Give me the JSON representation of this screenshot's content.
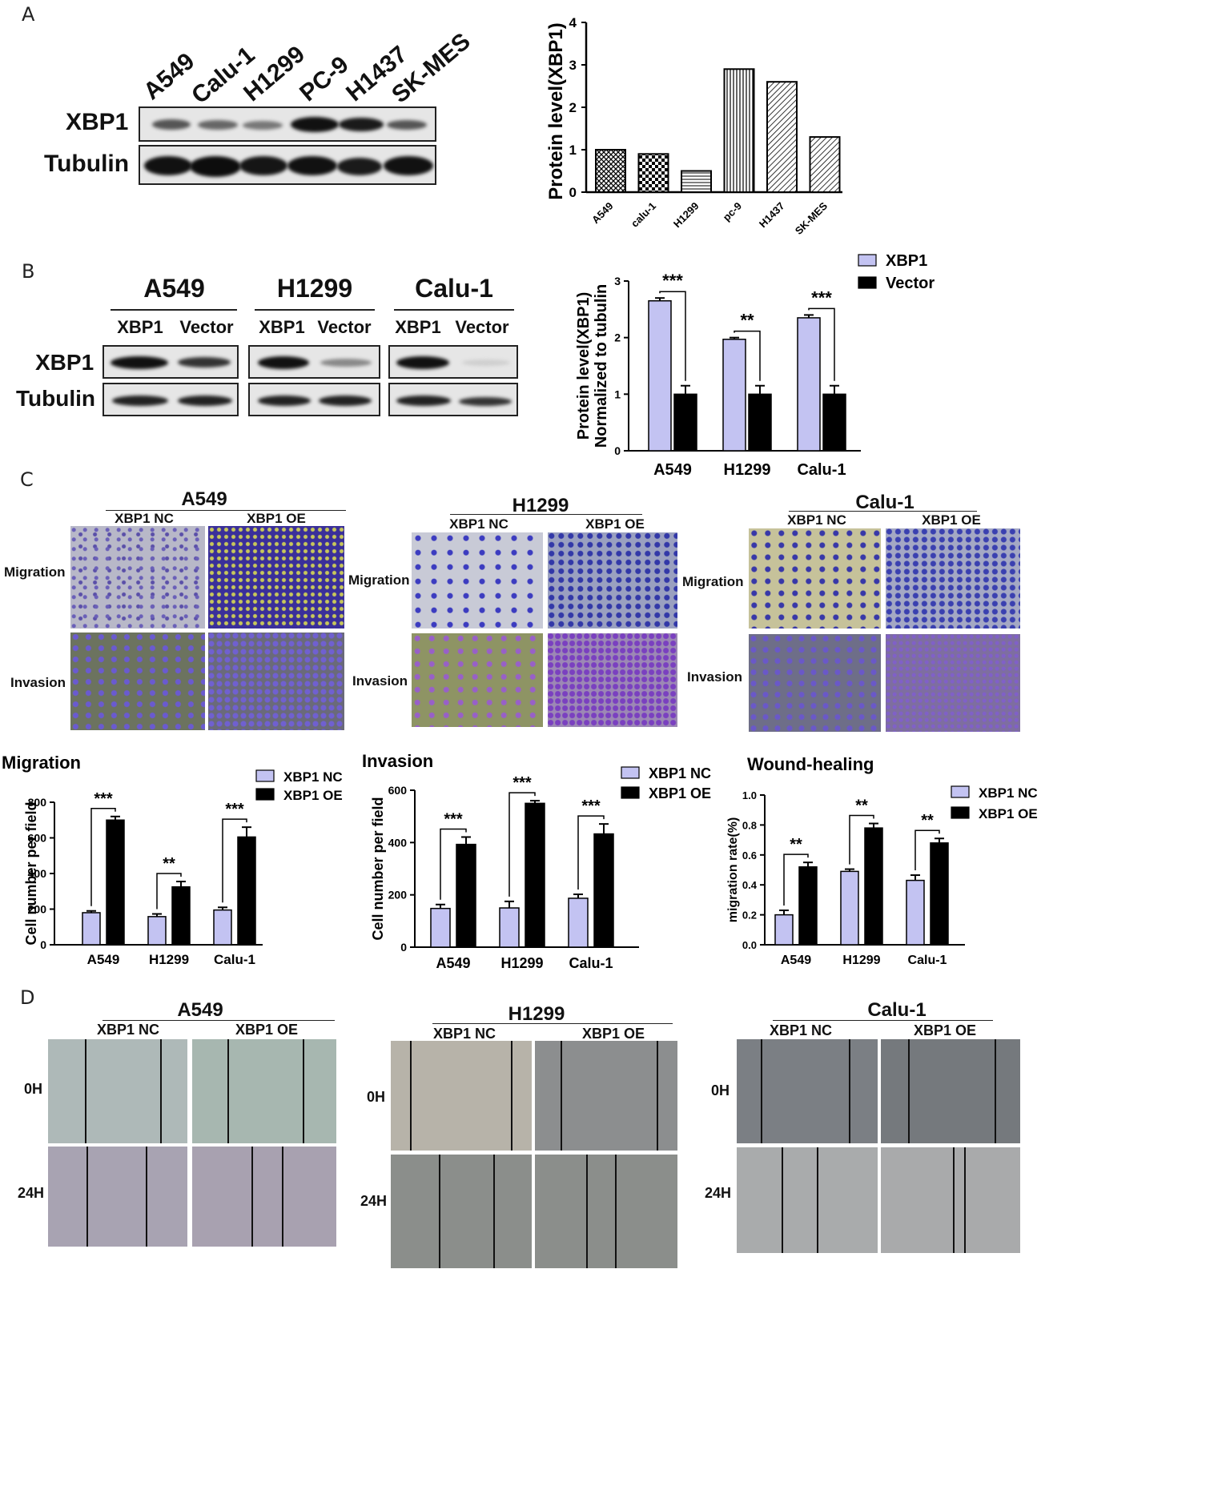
{
  "panelA": {
    "letter": "A",
    "cell_lines": [
      "A549",
      "Calu-1",
      "H1299",
      "PC-9",
      "H1437",
      "SK-MES"
    ],
    "rows": [
      "XBP1",
      "Tubulin"
    ]
  },
  "panelB": {
    "letter": "B",
    "groups": [
      "A549",
      "H1299",
      "Calu-1"
    ],
    "lanes": [
      "XBP1",
      "Vector"
    ],
    "rows": [
      "XBP1",
      "Tubulin"
    ]
  },
  "panelC": {
    "letter": "C",
    "groups": [
      "A549",
      "H1299",
      "Calu-1"
    ],
    "conditions": [
      "XBP1 NC",
      "XBP1 OE"
    ],
    "rows": [
      "Migration",
      "Invasion"
    ]
  },
  "panelD": {
    "letter": "D",
    "groups": [
      "A549",
      "H1299",
      "Calu-1"
    ],
    "conditions": [
      "XBP1 NC",
      "XBP1 OE"
    ],
    "rows": [
      "0H",
      "24H"
    ]
  },
  "colors": {
    "xbp1": "#c3c3f2",
    "vector": "#000000"
  },
  "chart_data": [
    {
      "id": "A",
      "type": "bar",
      "categories": [
        "A549",
        "calu-1",
        "H1299",
        "pc-9",
        "H1437",
        "SK-MES"
      ],
      "values": [
        1.0,
        0.9,
        0.5,
        2.9,
        2.6,
        1.3
      ],
      "patterns": [
        "crosshatch",
        "checker",
        "horizontal",
        "vertical",
        "diagonal",
        "diagonal"
      ],
      "ylabel": "Protein level(XBP1)",
      "ylim": [
        0,
        4
      ],
      "yticks": [
        "0",
        "1",
        "2",
        "3",
        "4"
      ]
    },
    {
      "id": "B",
      "type": "bar",
      "categories": [
        "A549",
        "H1299",
        "Calu-1"
      ],
      "series": [
        {
          "name": "XBP1",
          "values": [
            2.65,
            1.97,
            2.35
          ],
          "errors": [
            0.05,
            0.03,
            0.05
          ]
        },
        {
          "name": "Vector",
          "values": [
            1.0,
            1.0,
            1.0
          ],
          "errors": [
            0.15,
            0.15,
            0.15
          ]
        }
      ],
      "significance": [
        "***",
        "**",
        "***"
      ],
      "ylabel": "Protein level(XBP1)",
      "ylabel2": "Normalized to tubulin",
      "ylim": [
        0,
        3
      ],
      "yticks": [
        "0",
        "1",
        "2",
        "3"
      ]
    },
    {
      "id": "C-migration",
      "type": "bar",
      "title": "Migration",
      "categories": [
        "A549",
        "H1299",
        "Calu-1"
      ],
      "series": [
        {
          "name": "XBP1 NC",
          "values": [
            180,
            158,
            195
          ],
          "errors": [
            10,
            15,
            15
          ]
        },
        {
          "name": "XBP1 OE",
          "values": [
            700,
            325,
            605
          ],
          "errors": [
            20,
            30,
            55
          ]
        }
      ],
      "significance": [
        "***",
        "**",
        "***"
      ],
      "ylabel": "Cell number per field",
      "ylim": [
        0,
        800
      ],
      "yticks": [
        "0",
        "200",
        "400",
        "600",
        "800"
      ]
    },
    {
      "id": "C-invasion",
      "type": "bar",
      "title": "Invasion",
      "categories": [
        "A549",
        "H1299",
        "Calu-1"
      ],
      "series": [
        {
          "name": "XBP1 NC",
          "values": [
            148,
            150,
            187
          ],
          "errors": [
            15,
            25,
            15
          ]
        },
        {
          "name": "XBP1 OE",
          "values": [
            393,
            550,
            433
          ],
          "errors": [
            28,
            10,
            38
          ]
        }
      ],
      "significance": [
        "***",
        "***",
        "***"
      ],
      "ylabel": "Cell number per field",
      "ylim": [
        0,
        600
      ],
      "yticks": [
        "0",
        "200",
        "400",
        "600"
      ]
    },
    {
      "id": "C-wound",
      "type": "bar",
      "title": "Wound-healing",
      "categories": [
        "A549",
        "H1299",
        "Calu-1"
      ],
      "series": [
        {
          "name": "XBP1 NC",
          "values": [
            0.2,
            0.49,
            0.43
          ],
          "errors": [
            0.03,
            0.015,
            0.035
          ]
        },
        {
          "name": "XBP1 OE",
          "values": [
            0.52,
            0.78,
            0.68
          ],
          "errors": [
            0.03,
            0.03,
            0.03
          ]
        }
      ],
      "significance": [
        "**",
        "**",
        "**"
      ],
      "ylabel": "migration rate(%)",
      "ylim": [
        0,
        1.0
      ],
      "yticks": [
        "0.0",
        "0.2",
        "0.4",
        "0.6",
        "0.8",
        "1.0"
      ]
    }
  ]
}
